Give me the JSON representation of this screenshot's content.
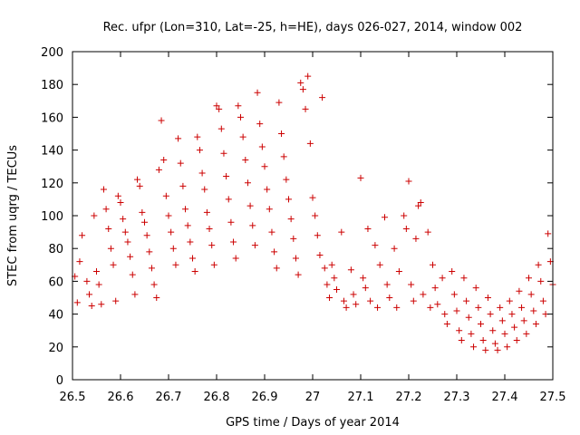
{
  "chart_data": {
    "type": "scatter",
    "title": "Rec. ufpr (Lon=310, Lat=-25, h=HE), days 026-027, 2014, window 002",
    "xlabel": "GPS time / Days of year 2014",
    "ylabel": "STEC from uqrg / TECUs",
    "xlim": [
      26.5,
      27.5
    ],
    "ylim": [
      0,
      200
    ],
    "xticks": [
      "26.5",
      "26.6",
      "26.7",
      "26.8",
      "26.9",
      "27",
      "27.1",
      "27.2",
      "27.3",
      "27.4",
      "27.5"
    ],
    "yticks": [
      "0",
      "20",
      "40",
      "60",
      "80",
      "100",
      "120",
      "140",
      "160",
      "180",
      "200"
    ],
    "grid": false,
    "marker": "+",
    "color": "#cc0000",
    "points": [
      [
        26.505,
        63
      ],
      [
        26.51,
        47
      ],
      [
        26.515,
        72
      ],
      [
        26.52,
        88
      ],
      [
        26.53,
        60
      ],
      [
        26.535,
        52
      ],
      [
        26.54,
        45
      ],
      [
        26.545,
        100
      ],
      [
        26.55,
        66
      ],
      [
        26.555,
        58
      ],
      [
        26.56,
        46
      ],
      [
        26.565,
        116
      ],
      [
        26.57,
        104
      ],
      [
        26.575,
        92
      ],
      [
        26.58,
        80
      ],
      [
        26.585,
        70
      ],
      [
        26.59,
        48
      ],
      [
        26.595,
        112
      ],
      [
        26.6,
        108
      ],
      [
        26.605,
        98
      ],
      [
        26.61,
        90
      ],
      [
        26.615,
        84
      ],
      [
        26.62,
        75
      ],
      [
        26.625,
        64
      ],
      [
        26.63,
        52
      ],
      [
        26.635,
        122
      ],
      [
        26.64,
        118
      ],
      [
        26.645,
        102
      ],
      [
        26.65,
        96
      ],
      [
        26.655,
        88
      ],
      [
        26.66,
        78
      ],
      [
        26.665,
        68
      ],
      [
        26.67,
        58
      ],
      [
        26.675,
        50
      ],
      [
        26.68,
        128
      ],
      [
        26.685,
        158
      ],
      [
        26.69,
        134
      ],
      [
        26.695,
        112
      ],
      [
        26.7,
        100
      ],
      [
        26.705,
        90
      ],
      [
        26.71,
        80
      ],
      [
        26.715,
        70
      ],
      [
        26.72,
        147
      ],
      [
        26.725,
        132
      ],
      [
        26.73,
        118
      ],
      [
        26.735,
        104
      ],
      [
        26.74,
        94
      ],
      [
        26.745,
        84
      ],
      [
        26.75,
        74
      ],
      [
        26.755,
        66
      ],
      [
        26.76,
        148
      ],
      [
        26.765,
        140
      ],
      [
        26.77,
        126
      ],
      [
        26.775,
        116
      ],
      [
        26.78,
        102
      ],
      [
        26.785,
        92
      ],
      [
        26.79,
        82
      ],
      [
        26.795,
        70
      ],
      [
        26.8,
        167
      ],
      [
        26.805,
        165
      ],
      [
        26.81,
        153
      ],
      [
        26.815,
        138
      ],
      [
        26.82,
        124
      ],
      [
        26.825,
        110
      ],
      [
        26.83,
        96
      ],
      [
        26.835,
        84
      ],
      [
        26.84,
        74
      ],
      [
        26.845,
        167
      ],
      [
        26.85,
        160
      ],
      [
        26.855,
        148
      ],
      [
        26.86,
        134
      ],
      [
        26.865,
        120
      ],
      [
        26.87,
        106
      ],
      [
        26.875,
        94
      ],
      [
        26.88,
        82
      ],
      [
        26.885,
        175
      ],
      [
        26.89,
        156
      ],
      [
        26.895,
        142
      ],
      [
        26.9,
        130
      ],
      [
        26.905,
        116
      ],
      [
        26.91,
        104
      ],
      [
        26.915,
        90
      ],
      [
        26.92,
        78
      ],
      [
        26.925,
        68
      ],
      [
        26.93,
        169
      ],
      [
        26.935,
        150
      ],
      [
        26.94,
        136
      ],
      [
        26.945,
        122
      ],
      [
        26.95,
        110
      ],
      [
        26.955,
        98
      ],
      [
        26.96,
        86
      ],
      [
        26.965,
        74
      ],
      [
        26.97,
        64
      ],
      [
        26.975,
        181
      ],
      [
        26.98,
        177
      ],
      [
        26.985,
        165
      ],
      [
        26.99,
        185
      ],
      [
        26.995,
        144
      ],
      [
        27.0,
        111
      ],
      [
        27.005,
        100
      ],
      [
        27.01,
        88
      ],
      [
        27.015,
        76
      ],
      [
        27.02,
        172
      ],
      [
        27.025,
        68
      ],
      [
        27.03,
        58
      ],
      [
        27.035,
        50
      ],
      [
        27.04,
        70
      ],
      [
        27.045,
        62
      ],
      [
        27.05,
        55
      ],
      [
        27.06,
        90
      ],
      [
        27.065,
        48
      ],
      [
        27.07,
        44
      ],
      [
        27.08,
        67
      ],
      [
        27.085,
        52
      ],
      [
        27.09,
        46
      ],
      [
        27.1,
        123
      ],
      [
        27.105,
        62
      ],
      [
        27.11,
        56
      ],
      [
        27.115,
        92
      ],
      [
        27.12,
        48
      ],
      [
        27.13,
        82
      ],
      [
        27.135,
        44
      ],
      [
        27.14,
        70
      ],
      [
        27.15,
        99
      ],
      [
        27.155,
        58
      ],
      [
        27.16,
        50
      ],
      [
        27.17,
        80
      ],
      [
        27.175,
        44
      ],
      [
        27.18,
        66
      ],
      [
        27.19,
        100
      ],
      [
        27.195,
        92
      ],
      [
        27.2,
        121
      ],
      [
        27.205,
        58
      ],
      [
        27.21,
        48
      ],
      [
        27.215,
        86
      ],
      [
        27.22,
        106
      ],
      [
        27.225,
        108
      ],
      [
        27.23,
        52
      ],
      [
        27.24,
        90
      ],
      [
        27.245,
        44
      ],
      [
        27.25,
        70
      ],
      [
        27.255,
        56
      ],
      [
        27.26,
        46
      ],
      [
        27.27,
        62
      ],
      [
        27.275,
        40
      ],
      [
        27.28,
        34
      ],
      [
        27.29,
        66
      ],
      [
        27.295,
        52
      ],
      [
        27.3,
        42
      ],
      [
        27.305,
        30
      ],
      [
        27.31,
        24
      ],
      [
        27.315,
        62
      ],
      [
        27.32,
        48
      ],
      [
        27.325,
        38
      ],
      [
        27.33,
        28
      ],
      [
        27.335,
        20
      ],
      [
        27.34,
        56
      ],
      [
        27.345,
        44
      ],
      [
        27.35,
        34
      ],
      [
        27.355,
        24
      ],
      [
        27.36,
        18
      ],
      [
        27.365,
        50
      ],
      [
        27.37,
        40
      ],
      [
        27.375,
        30
      ],
      [
        27.38,
        22
      ],
      [
        27.385,
        18
      ],
      [
        27.39,
        44
      ],
      [
        27.395,
        36
      ],
      [
        27.4,
        28
      ],
      [
        27.405,
        20
      ],
      [
        27.41,
        48
      ],
      [
        27.415,
        40
      ],
      [
        27.42,
        32
      ],
      [
        27.425,
        24
      ],
      [
        27.43,
        54
      ],
      [
        27.435,
        44
      ],
      [
        27.44,
        36
      ],
      [
        27.445,
        28
      ],
      [
        27.45,
        62
      ],
      [
        27.455,
        52
      ],
      [
        27.46,
        42
      ],
      [
        27.465,
        34
      ],
      [
        27.47,
        70
      ],
      [
        27.475,
        60
      ],
      [
        27.48,
        48
      ],
      [
        27.485,
        40
      ],
      [
        27.49,
        89
      ],
      [
        27.495,
        72
      ],
      [
        27.5,
        58
      ]
    ]
  }
}
